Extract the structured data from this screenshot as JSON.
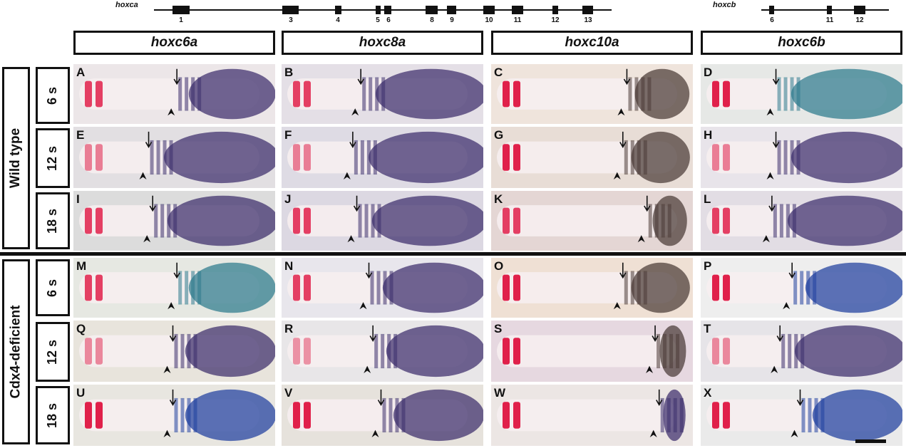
{
  "gene_maps": {
    "hoxca": {
      "name": "hoxca",
      "exons": [
        "1",
        "3",
        "4",
        "5",
        "6",
        "8",
        "9",
        "10",
        "11",
        "12",
        "13"
      ]
    },
    "hoxcb": {
      "name": "hoxcb",
      "exons": [
        "6",
        "11",
        "12"
      ]
    }
  },
  "columns": [
    "hoxc6a",
    "hoxc8a",
    "hoxc10a",
    "hoxc6b"
  ],
  "groups": {
    "wild_type": {
      "label": "Wild type",
      "stages": [
        "6 s",
        "12 s",
        "18 s"
      ]
    },
    "cdx4": {
      "label": "Cdx4-deficient",
      "stages": [
        "6 s",
        "12 s",
        "18 s"
      ]
    }
  },
  "panels": [
    "A",
    "B",
    "C",
    "D",
    "E",
    "F",
    "G",
    "H",
    "I",
    "J",
    "K",
    "L",
    "M",
    "N",
    "O",
    "P",
    "Q",
    "R",
    "S",
    "T",
    "U",
    "V",
    "W",
    "X"
  ],
  "colors": {
    "somite_marker": "#e0204a",
    "stain_purple": "#3b2d6b",
    "stain_blue": "#1f3f9e",
    "stain_teal": "#2c7a8c",
    "stain_brown": "#4a3a36"
  }
}
